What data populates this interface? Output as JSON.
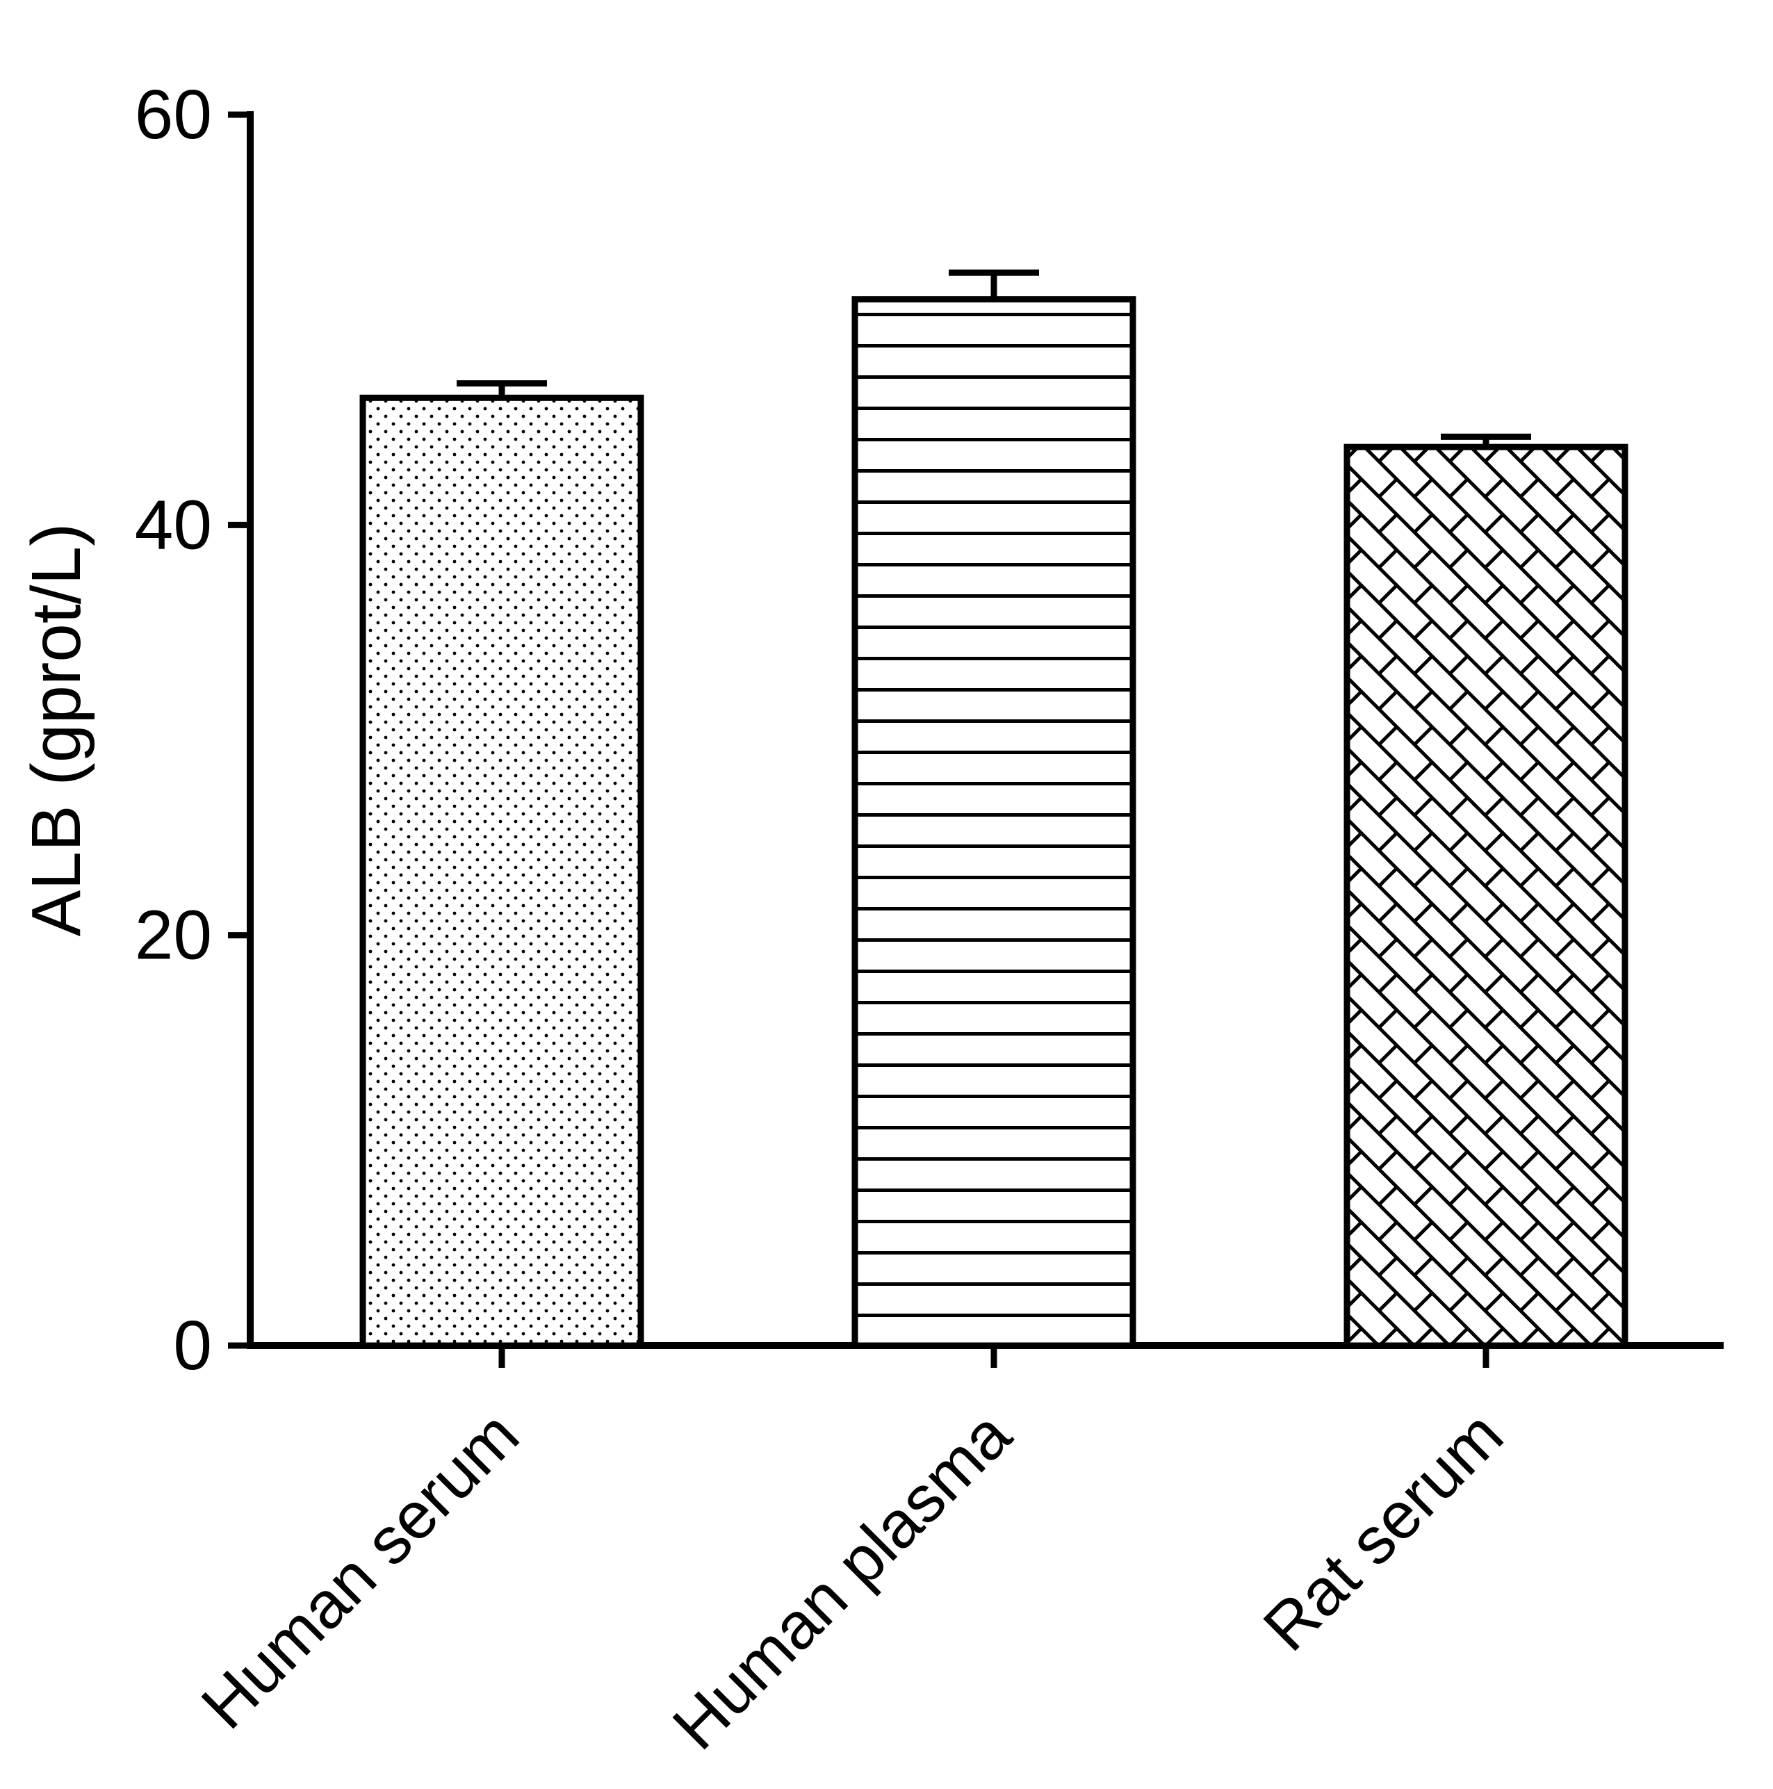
{
  "chart_data": {
    "type": "bar",
    "categories": [
      "Human serum",
      "Human plasma",
      "Rat serum"
    ],
    "values": [
      46.2,
      51.0,
      43.8
    ],
    "errors": [
      0.7,
      1.3,
      0.5
    ],
    "title": "",
    "xlabel": "",
    "ylabel": "ALB (gprot/L)",
    "ylim": [
      0,
      60
    ],
    "yticks": [
      0,
      20,
      40,
      60
    ],
    "grid": false,
    "legend": "none",
    "bar_patterns": [
      "dots",
      "horizontal-lines",
      "diagonal-bricks"
    ],
    "bar_fill": "#ffffff",
    "bar_stroke": "#000000",
    "axis_color": "#000000"
  }
}
